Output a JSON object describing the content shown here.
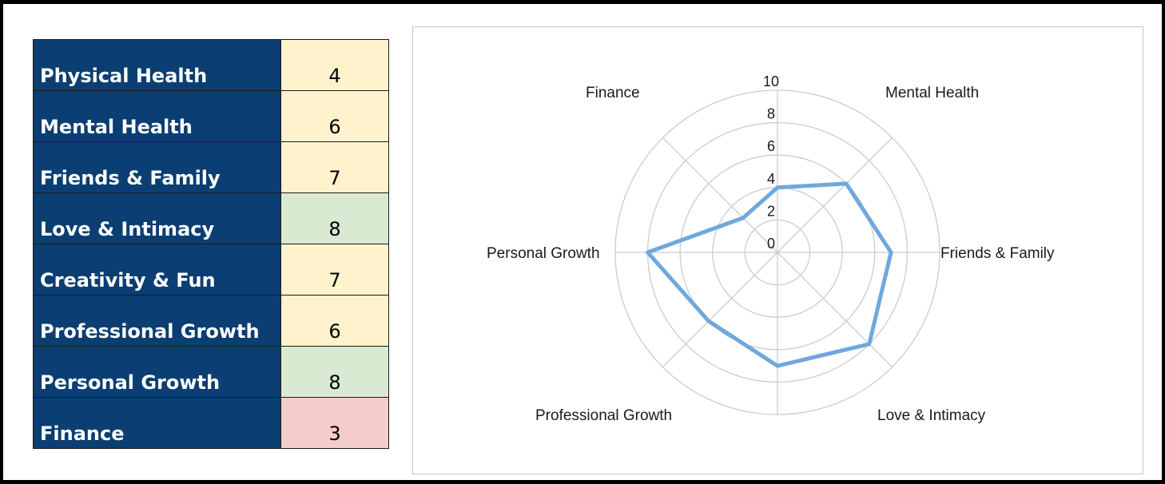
{
  "table": {
    "rows": [
      {
        "category": "Physical Health",
        "value": "4",
        "fill": "#fff2cc"
      },
      {
        "category": "Mental Health",
        "value": "6",
        "fill": "#fff2cc"
      },
      {
        "category": "Friends & Family",
        "value": "7",
        "fill": "#fff2cc"
      },
      {
        "category": "Love & Intimacy",
        "value": "8",
        "fill": "#d9ead3"
      },
      {
        "category": "Creativity & Fun",
        "value": "7",
        "fill": "#fff2cc"
      },
      {
        "category": "Professional Growth",
        "value": "6",
        "fill": "#fff2cc"
      },
      {
        "category": "Personal Growth",
        "value": "8",
        "fill": "#d9ead3"
      },
      {
        "category": "Finance",
        "value": "3",
        "fill": "#f4cccc"
      }
    ],
    "header_fill": "#0b3e72"
  },
  "chart_data": {
    "type": "radar",
    "title": "",
    "categories": [
      "",
      "Mental Health",
      "Friends & Family",
      "Love & Intimacy",
      "",
      "Professional Growth",
      "Personal Growth",
      "Finance"
    ],
    "series": [
      {
        "values": [
          4,
          6,
          7,
          8,
          7,
          6,
          8,
          3
        ],
        "color": "#6fa8dc"
      }
    ],
    "r_range": [
      0,
      10
    ],
    "r_ticks": [
      "0",
      "2",
      "4",
      "6",
      "8",
      "10"
    ],
    "grid": true,
    "legend": "none"
  }
}
